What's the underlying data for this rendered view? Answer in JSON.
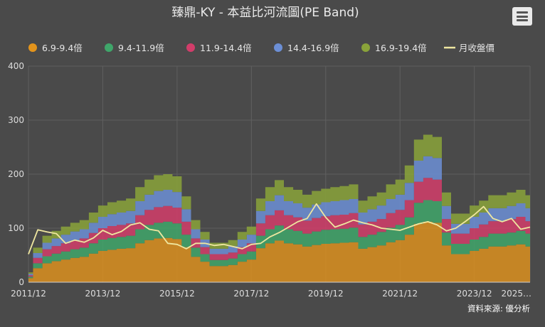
{
  "chart_data": {
    "type": "area",
    "title": "臻鼎-KY - 本益比河流圖(PE Band)",
    "credit": "資料來源: 優分析",
    "x_tick_labels": [
      "2011/12",
      "2013/12",
      "2015/12",
      "2017/12",
      "2019/12",
      "2021/12",
      "2023/12",
      "2025…"
    ],
    "y_ticks": [
      0,
      100,
      200,
      300,
      400
    ],
    "ylim": [
      0,
      400
    ],
    "grid": true,
    "legend_position": "top",
    "colors": {
      "band_1": "#e3941c",
      "band_2": "#3fa66a",
      "band_3": "#d23d6a",
      "band_4": "#6c8fd6",
      "band_5": "#8aa33a",
      "price": "#efe7a0",
      "background": "#4a4a4a",
      "grid": "#5f5f5f"
    },
    "x": [
      "2011/12",
      "2012/03",
      "2012/06",
      "2012/09",
      "2012/12",
      "2013/03",
      "2013/06",
      "2013/09",
      "2013/12",
      "2014/03",
      "2014/06",
      "2014/09",
      "2014/12",
      "2015/03",
      "2015/06",
      "2015/09",
      "2015/12",
      "2016/03",
      "2016/06",
      "2016/09",
      "2016/12",
      "2017/03",
      "2017/06",
      "2017/09",
      "2017/12",
      "2018/03",
      "2018/06",
      "2018/09",
      "2018/12",
      "2019/03",
      "2019/06",
      "2019/09",
      "2019/12",
      "2020/03",
      "2020/06",
      "2020/09",
      "2020/12",
      "2021/03",
      "2021/06",
      "2021/09",
      "2021/12",
      "2022/03",
      "2022/06",
      "2022/09",
      "2022/12",
      "2023/03",
      "2023/06",
      "2023/09",
      "2023/12",
      "2024/03",
      "2024/06",
      "2024/09",
      "2024/12",
      "2025/03",
      "2025/06"
    ],
    "series": [
      {
        "name": "6.9-9.4倍",
        "values": [
          7.5,
          26,
          35,
          39,
          42,
          45,
          47,
          53,
          58,
          60,
          62,
          63,
          72,
          78,
          81,
          82,
          80,
          65,
          47,
          38,
          30,
          30,
          32,
          38,
          42,
          63,
          72,
          77,
          72,
          70,
          66,
          69,
          71,
          72,
          73,
          74,
          62,
          65,
          68,
          74,
          78,
          88,
          108,
          112,
          110,
          68,
          52,
          52,
          58,
          62,
          66,
          66,
          68,
          70,
          66
        ]
      },
      {
        "name": "9.4-11.9倍",
        "values": [
          10.2,
          35,
          48,
          53,
          57,
          61,
          64,
          72,
          79,
          82,
          84,
          86,
          98,
          106,
          110,
          112,
          109,
          88,
          64,
          52,
          41,
          41,
          44,
          52,
          57,
          86,
          98,
          105,
          98,
          95,
          90,
          94,
          97,
          98,
          99,
          101,
          84,
          88,
          93,
          101,
          106,
          120,
          147,
          152,
          150,
          92,
          71,
          71,
          79,
          84,
          90,
          90,
          92,
          95,
          90
        ]
      },
      {
        "name": "11.9-14.4倍",
        "values": [
          12.9,
          45,
          61,
          67,
          72,
          77,
          81,
          91,
          100,
          104,
          106,
          109,
          124,
          134,
          139,
          141,
          138,
          112,
          81,
          65,
          52,
          52,
          55,
          65,
          72,
          109,
          124,
          133,
          124,
          120,
          114,
          119,
          122,
          124,
          125,
          128,
          107,
          112,
          117,
          128,
          134,
          152,
          186,
          193,
          190,
          117,
          90,
          90,
          100,
          107,
          113,
          113,
          117,
          121,
          113
        ]
      },
      {
        "name": "14.4-16.9倍",
        "values": [
          15.6,
          54,
          73,
          81,
          88,
          94,
          98,
          110,
          121,
          126,
          129,
          132,
          150,
          162,
          169,
          171,
          167,
          135,
          98,
          79,
          62,
          62,
          67,
          79,
          88,
          132,
          150,
          161,
          150,
          146,
          138,
          144,
          148,
          150,
          152,
          154,
          129,
          135,
          142,
          154,
          162,
          184,
          225,
          233,
          230,
          141,
          108,
          108,
          121,
          129,
          137,
          137,
          141,
          146,
          137
        ]
      },
      {
        "name": "16.9-19.4倍",
        "values": [
          18.3,
          64,
          86,
          95,
          103,
          110,
          115,
          129,
          142,
          148,
          151,
          155,
          176,
          190,
          198,
          200,
          196,
          159,
          115,
          93,
          73,
          73,
          78,
          93,
          103,
          155,
          176,
          189,
          176,
          171,
          162,
          169,
          173,
          176,
          178,
          181,
          151,
          159,
          166,
          181,
          190,
          216,
          264,
          273,
          269,
          166,
          127,
          127,
          142,
          151,
          161,
          161,
          166,
          171,
          161
        ]
      },
      {
        "name": "月收盤價",
        "values": [
          52,
          97,
          93,
          90,
          72,
          78,
          74,
          82,
          96,
          88,
          94,
          106,
          110,
          98,
          95,
          72,
          70,
          62,
          72,
          72,
          68,
          70,
          66,
          62,
          70,
          72,
          84,
          92,
          102,
          112,
          118,
          145,
          120,
          102,
          108,
          115,
          110,
          106,
          100,
          98,
          96,
          102,
          108,
          112,
          106,
          95,
          100,
          112,
          125,
          140,
          118,
          112,
          118,
          98,
          102
        ]
      }
    ]
  }
}
